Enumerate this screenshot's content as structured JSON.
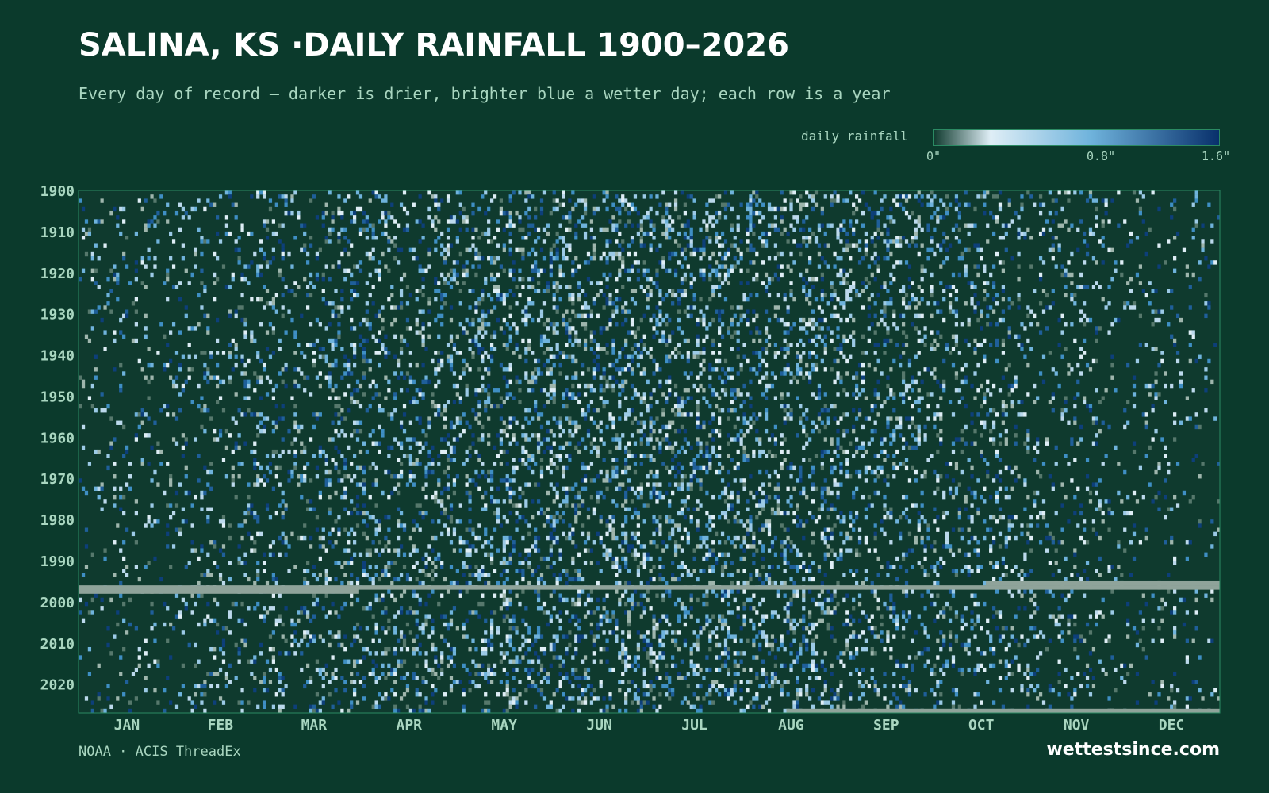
{
  "header": {
    "title": "SALINA, KS ·DAILY RAINFALL 1900–2026",
    "subtitle": "Every day of record — darker is drier, brighter blue a wetter day; each row is a year"
  },
  "legend": {
    "label": "daily rainfall",
    "ticks": [
      "0\"",
      "0.8\"",
      "1.6\""
    ],
    "colors": [
      "#0f3a2e",
      "#dfeef6",
      "#6fb3dc",
      "#08306b"
    ]
  },
  "footer": {
    "source": "NOAA · ACIS ThreadEx",
    "brand": "wettestsince.com"
  },
  "colors": {
    "background": "#0b3a2c",
    "missing": "#8fa39a",
    "axis_text": "#a9d6c0",
    "frame": "#2b8a63"
  },
  "chart_data": {
    "type": "heatmap",
    "x_unit": "day of year",
    "y_unit": "year",
    "year_range": [
      1900,
      2026
    ],
    "value_range": [
      0,
      1.6
    ],
    "value_unit": "inches",
    "y_tick_labels": [
      "1900",
      "1910",
      "1920",
      "1930",
      "1940",
      "1950",
      "1960",
      "1970",
      "1980",
      "1990",
      "2000",
      "2010",
      "2020"
    ],
    "x_tick_labels": [
      "JAN",
      "FEB",
      "MAR",
      "APR",
      "MAY",
      "JUN",
      "JUL",
      "AUG",
      "SEP",
      "OCT",
      "NOV",
      "DEC"
    ],
    "missing_periods": [
      {
        "year": 1995,
        "start_day": 292,
        "end_day": 366
      },
      {
        "year": 1996,
        "start_day": 1,
        "end_day": 366
      },
      {
        "year": 1997,
        "start_day": 1,
        "end_day": 90
      },
      {
        "year": 2026,
        "start_day": 228,
        "end_day": 366
      }
    ]
  }
}
